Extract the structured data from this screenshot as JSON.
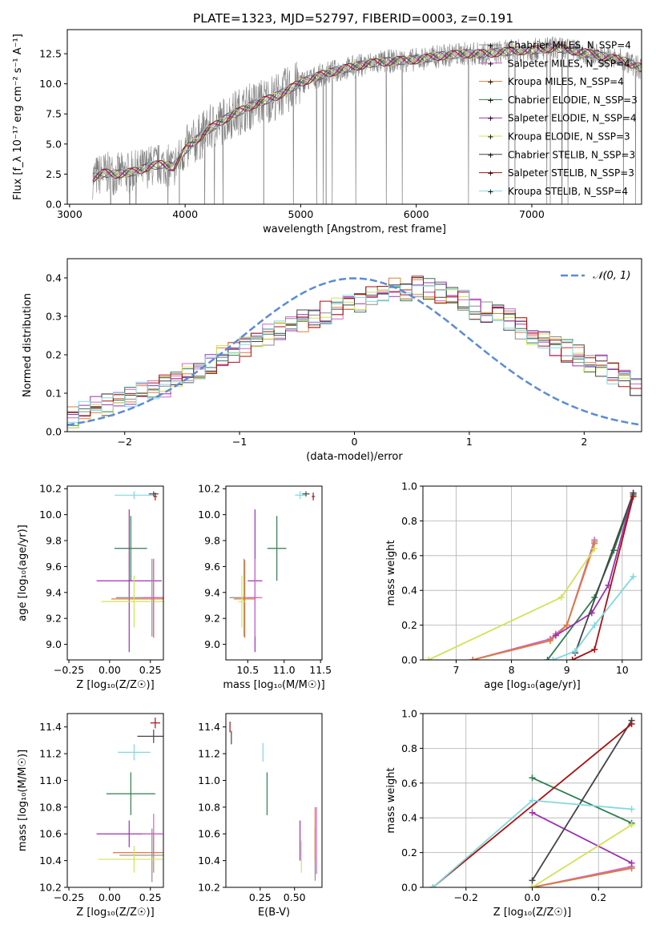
{
  "figure_title": "PLATE=1323, MJD=52797, FIBERID=0003, z=0.191",
  "colors": {
    "Chabrier MILES": "#8c8c8c",
    "Salpeter MILES": "#cc66cc",
    "Kroupa MILES": "#e07b39",
    "Chabrier ELODIE": "#2e7d4f",
    "Salpeter ELODIE": "#9b30b0",
    "Kroupa ELODIE": "#d4e157",
    "Chabrier STELIB": "#444444",
    "Salpeter STELIB": "#aa1111",
    "Kroupa STELIB": "#80d8e0",
    "normal": "#5b8bd6",
    "data": "#808080"
  },
  "chart_data": [
    {
      "id": "spectrum",
      "type": "line",
      "xlabel": "wavelength [Angstrom, rest frame]",
      "ylabel": "Flux [f_λ 10⁻¹⁷ erg cm⁻² s⁻¹ A⁻¹]",
      "xlim": [
        2980,
        7950
      ],
      "ylim": [
        0,
        14.5
      ],
      "xticks": [
        3000,
        4000,
        5000,
        6000,
        7000
      ],
      "yticks": [
        0.0,
        2.5,
        5.0,
        7.5,
        10.0,
        12.5
      ],
      "legend_placement": "top-right",
      "legend": [
        "Chabrier MILES, N_SSP=4",
        "Salpeter MILES, N_SSP=4",
        "Kroupa MILES, N_SSP=4",
        "Chabrier ELODIE, N_SSP=3",
        "Salpeter ELODIE, N_SSP=4",
        "Kroupa ELODIE, N_SSP=3",
        "Chabrier STELIB, N_SSP=3",
        "Salpeter STELIB, N_SSP=3",
        "Kroupa STELIB, N_SSP=4"
      ],
      "model_continuum": {
        "x": [
          3200,
          3300,
          3400,
          3500,
          3600,
          3700,
          3800,
          3900,
          4000,
          4200,
          4400,
          4600,
          4800,
          5000,
          5200,
          5400,
          5600,
          5800,
          6000,
          6200,
          6400,
          6600,
          6800,
          7000,
          7200,
          7400,
          7600,
          7800,
          7950
        ],
        "y": [
          2.2,
          2.6,
          2.5,
          2.6,
          2.8,
          3.2,
          3.3,
          3.1,
          4.5,
          6.2,
          7.4,
          8.3,
          9.0,
          10.1,
          10.8,
          11.3,
          11.7,
          11.9,
          12.0,
          12.3,
          12.5,
          12.5,
          12.7,
          12.8,
          13.0,
          12.7,
          12.3,
          11.9,
          11.3
        ]
      }
    },
    {
      "id": "residuals",
      "type": "histogram",
      "xlabel": "(data-model)/error",
      "ylabel": "Normed distribution",
      "xlim": [
        -2.5,
        2.5
      ],
      "ylim": [
        0,
        0.45
      ],
      "xticks": [
        -2,
        -1,
        0,
        1,
        2
      ],
      "yticks": [
        0.0,
        0.1,
        0.2,
        0.3,
        0.4
      ],
      "grid": true,
      "legend": [
        "𝒩(0, 1)"
      ],
      "legend_placement": "top-right",
      "bin_edges_start": -2.5,
      "bin_width": 0.1,
      "profile": [
        0.04,
        0.055,
        0.07,
        0.07,
        0.075,
        0.09,
        0.1,
        0.11,
        0.12,
        0.135,
        0.15,
        0.16,
        0.18,
        0.2,
        0.21,
        0.22,
        0.23,
        0.25,
        0.26,
        0.28,
        0.29,
        0.3,
        0.31,
        0.32,
        0.33,
        0.34,
        0.36,
        0.36,
        0.37,
        0.37,
        0.38,
        0.37,
        0.36,
        0.35,
        0.34,
        0.32,
        0.31,
        0.3,
        0.29,
        0.27,
        0.25,
        0.24,
        0.22,
        0.21,
        0.2,
        0.18,
        0.17,
        0.15,
        0.13,
        0.12
      ],
      "normal_curve": {
        "mean": 0,
        "sigma": 1
      }
    },
    {
      "id": "age_vs_Z",
      "type": "scatter",
      "xlabel": "Z [log₁₀(Z/Z☉)]",
      "ylabel": "age [log₁₀(age/yr)]",
      "xlim": [
        -0.26,
        0.33
      ],
      "ylim": [
        8.88,
        10.22
      ],
      "xticks": [
        -0.25,
        0.0,
        0.25
      ],
      "yticks": [
        9.0,
        9.2,
        9.4,
        9.6,
        9.8,
        10.0,
        10.2
      ],
      "points": [
        {
          "model": "Kroupa STELIB",
          "x": 0.15,
          "y": 10.15,
          "xerr": 0.12,
          "yerr": 0.03
        },
        {
          "model": "Chabrier STELIB",
          "x": 0.27,
          "y": 10.16,
          "xerr": 0.03,
          "yerr": 0.02
        },
        {
          "model": "Salpeter STELIB",
          "x": 0.28,
          "y": 10.14,
          "xerr": 0.01,
          "yerr": 0.03
        },
        {
          "model": "Chabrier ELODIE",
          "x": 0.13,
          "y": 9.74,
          "xerr": 0.1,
          "yerr": 0.25
        },
        {
          "model": "Salpeter ELODIE",
          "x": 0.12,
          "y": 9.49,
          "xerr": 0.2,
          "yerr": 0.55
        },
        {
          "model": "Chabrier MILES",
          "x": 0.26,
          "y": 9.36,
          "xerr": 0.22,
          "yerr": 0.3
        },
        {
          "model": "Kroupa MILES",
          "x": 0.27,
          "y": 9.35,
          "xerr": 0.26,
          "yerr": 0.3
        },
        {
          "model": "Kroupa ELODIE",
          "x": 0.15,
          "y": 9.33,
          "xerr": 0.2,
          "yerr": 0.2
        },
        {
          "model": "Salpeter MILES",
          "x": 0.27,
          "y": 9.36,
          "xerr": 0.07,
          "yerr": 0.3
        }
      ]
    },
    {
      "id": "age_vs_mass",
      "type": "scatter",
      "xlabel": "mass [log₁₀(M/M☉)]",
      "ylabel": "",
      "xlim": [
        10.2,
        11.52
      ],
      "ylim": [
        8.88,
        10.22
      ],
      "xticks": [
        10.5,
        11.0,
        11.5
      ],
      "yticks": [
        9.0,
        9.2,
        9.4,
        9.6,
        9.8,
        10.0,
        10.2
      ],
      "points": [
        {
          "model": "Kroupa STELIB",
          "x": 11.22,
          "y": 10.15,
          "xerr": 0.07,
          "yerr": 0.03
        },
        {
          "model": "Chabrier STELIB",
          "x": 11.3,
          "y": 10.16,
          "xerr": 0.05,
          "yerr": 0.02
        },
        {
          "model": "Salpeter STELIB",
          "x": 11.4,
          "y": 10.14,
          "xerr": 0.02,
          "yerr": 0.03
        },
        {
          "model": "Chabrier ELODIE",
          "x": 10.9,
          "y": 9.74,
          "xerr": 0.13,
          "yerr": 0.25
        },
        {
          "model": "Salpeter ELODIE",
          "x": 10.6,
          "y": 9.49,
          "xerr": 0.1,
          "yerr": 0.55
        },
        {
          "model": "Chabrier MILES",
          "x": 10.45,
          "y": 9.36,
          "xerr": 0.2,
          "yerr": 0.3
        },
        {
          "model": "Kroupa MILES",
          "x": 10.46,
          "y": 9.35,
          "xerr": 0.15,
          "yerr": 0.3
        },
        {
          "model": "Kroupa ELODIE",
          "x": 10.42,
          "y": 9.33,
          "xerr": 0.05,
          "yerr": 0.2
        },
        {
          "model": "Salpeter MILES",
          "x": 10.6,
          "y": 9.36,
          "xerr": 0.1,
          "yerr": 0.3
        }
      ]
    },
    {
      "id": "mass_weight_vs_age",
      "type": "line",
      "xlabel": "age [log₁₀(age/yr)]",
      "ylabel": "mass weight",
      "xlim": [
        6.4,
        10.35
      ],
      "ylim": [
        0,
        1
      ],
      "xticks": [
        7,
        8,
        9,
        10
      ],
      "yticks": [
        0.0,
        0.2,
        0.4,
        0.6,
        0.8,
        1.0
      ],
      "grid": true,
      "series": [
        {
          "model": "Chabrier MILES",
          "x": [
            7.3,
            8.7,
            9.0,
            9.5
          ],
          "y": [
            0.0,
            0.12,
            0.2,
            0.68
          ]
        },
        {
          "model": "Salpeter MILES",
          "x": [
            7.3,
            8.7,
            8.8,
            9.0,
            9.5
          ],
          "y": [
            0.0,
            0.12,
            0.15,
            0.2,
            0.69
          ]
        },
        {
          "model": "Kroupa MILES",
          "x": [
            7.3,
            8.7,
            9.0,
            9.5
          ],
          "y": [
            0.0,
            0.11,
            0.2,
            0.67
          ]
        },
        {
          "model": "Chabrier ELODIE",
          "x": [
            8.65,
            9.5,
            9.85,
            10.2
          ],
          "y": [
            0.0,
            0.36,
            0.63,
            0.95
          ]
        },
        {
          "model": "Salpeter ELODIE",
          "x": [
            8.8,
            9.45,
            9.75,
            10.2
          ],
          "y": [
            0.14,
            0.27,
            0.43,
            0.96
          ]
        },
        {
          "model": "Kroupa ELODIE",
          "x": [
            6.5,
            8.9,
            9.5
          ],
          "y": [
            0.0,
            0.36,
            0.64
          ]
        },
        {
          "model": "Chabrier STELIB",
          "x": [
            9.15,
            10.2
          ],
          "y": [
            0.04,
            0.96
          ]
        },
        {
          "model": "Salpeter STELIB",
          "x": [
            9.1,
            9.5,
            10.2
          ],
          "y": [
            0.0,
            0.06,
            0.94
          ]
        },
        {
          "model": "Kroupa STELIB",
          "x": [
            8.75,
            9.15,
            9.5,
            10.2
          ],
          "y": [
            0.0,
            0.05,
            0.2,
            0.48
          ]
        }
      ]
    },
    {
      "id": "mass_vs_Z",
      "type": "scatter",
      "xlabel": "Z [log₁₀(Z/Z☉)]",
      "ylabel": "mass [log₁₀(M/M☉)]",
      "xlim": [
        -0.26,
        0.33
      ],
      "ylim": [
        10.2,
        11.5
      ],
      "xticks": [
        -0.25,
        0.0,
        0.25
      ],
      "yticks": [
        10.2,
        10.4,
        10.6,
        10.8,
        11.0,
        11.2,
        11.4
      ],
      "points": [
        {
          "model": "Salpeter STELIB",
          "x": 0.28,
          "y": 11.43,
          "xerr": 0.03,
          "yerr": 0.04
        },
        {
          "model": "Chabrier STELIB",
          "x": 0.27,
          "y": 11.33,
          "xerr": 0.1,
          "yerr": 0.05
        },
        {
          "model": "Kroupa STELIB",
          "x": 0.15,
          "y": 11.21,
          "xerr": 0.1,
          "yerr": 0.06
        },
        {
          "model": "Chabrier ELODIE",
          "x": 0.13,
          "y": 10.9,
          "xerr": 0.15,
          "yerr": 0.16
        },
        {
          "model": "Salpeter ELODIE",
          "x": 0.12,
          "y": 10.6,
          "xerr": 0.2,
          "yerr": 0.1
        },
        {
          "model": "Kroupa MILES",
          "x": 0.27,
          "y": 10.46,
          "xerr": 0.25,
          "yerr": 0.15
        },
        {
          "model": "Chabrier MILES",
          "x": 0.26,
          "y": 10.44,
          "xerr": 0.2,
          "yerr": 0.2
        },
        {
          "model": "Kroupa ELODIE",
          "x": 0.15,
          "y": 10.41,
          "xerr": 0.22,
          "yerr": 0.1
        },
        {
          "model": "Salpeter MILES",
          "x": 0.27,
          "y": 10.6,
          "xerr": 0.07,
          "yerr": 0.15
        }
      ]
    },
    {
      "id": "mass_vs_ebv",
      "type": "scatter",
      "xlabel": "E(B-V)",
      "ylabel": "",
      "xlim": [
        0.0,
        0.7
      ],
      "ylim": [
        10.2,
        11.5
      ],
      "xticks": [
        0.25,
        0.5
      ],
      "yticks": [
        10.2,
        10.4,
        10.6,
        10.8,
        11.0,
        11.2,
        11.4
      ],
      "points": [
        {
          "model": "Salpeter STELIB",
          "x": 0.03,
          "y": 11.4,
          "xerr": 0.0,
          "yerr": 0.04
        },
        {
          "model": "Chabrier STELIB",
          "x": 0.04,
          "y": 11.32,
          "xerr": 0.0,
          "yerr": 0.05
        },
        {
          "model": "Kroupa STELIB",
          "x": 0.27,
          "y": 11.21,
          "xerr": 0.0,
          "yerr": 0.07
        },
        {
          "model": "Chabrier ELODIE",
          "x": 0.3,
          "y": 10.9,
          "xerr": 0.0,
          "yerr": 0.16
        },
        {
          "model": "Salpeter ELODIE",
          "x": 0.54,
          "y": 10.55,
          "xerr": 0.0,
          "yerr": 0.15
        },
        {
          "model": "Kroupa ELODIE",
          "x": 0.55,
          "y": 10.43,
          "xerr": 0.0,
          "yerr": 0.12
        },
        {
          "model": "Chabrier MILES",
          "x": 0.65,
          "y": 10.45,
          "xerr": 0.0,
          "yerr": 0.2
        },
        {
          "model": "Kroupa MILES",
          "x": 0.65,
          "y": 10.6,
          "xerr": 0.0,
          "yerr": 0.2
        },
        {
          "model": "Salpeter MILES",
          "x": 0.66,
          "y": 10.55,
          "xerr": 0.0,
          "yerr": 0.25
        }
      ]
    },
    {
      "id": "mass_weight_vs_Z",
      "type": "line",
      "xlabel": "Z [log₁₀(Z/Z☉)]",
      "ylabel": "mass weight",
      "xlim": [
        -0.33,
        0.33
      ],
      "ylim": [
        0,
        1
      ],
      "xticks": [
        -0.2,
        0.0,
        0.2
      ],
      "yticks": [
        0.0,
        0.2,
        0.4,
        0.6,
        0.8,
        1.0
      ],
      "grid": true,
      "series": [
        {
          "model": "Chabrier MILES",
          "x": [
            0.0,
            0.3
          ],
          "y": [
            0.0,
            0.11
          ]
        },
        {
          "model": "Salpeter MILES",
          "x": [
            0.0,
            0.3
          ],
          "y": [
            0.0,
            0.12
          ]
        },
        {
          "model": "Kroupa MILES",
          "x": [
            0.0,
            0.3
          ],
          "y": [
            0.0,
            0.11
          ]
        },
        {
          "model": "Chabrier ELODIE",
          "x": [
            0.0,
            0.3
          ],
          "y": [
            0.63,
            0.37
          ]
        },
        {
          "model": "Salpeter ELODIE",
          "x": [
            0.0,
            0.3
          ],
          "y": [
            0.43,
            0.14
          ]
        },
        {
          "model": "Kroupa ELODIE",
          "x": [
            0.0,
            0.3
          ],
          "y": [
            0.0,
            0.36
          ]
        },
        {
          "model": "Chabrier STELIB",
          "x": [
            0.0,
            0.3
          ],
          "y": [
            0.04,
            0.96
          ]
        },
        {
          "model": "Salpeter STELIB",
          "x": [
            -0.3,
            0.3
          ],
          "y": [
            0.0,
            0.94
          ]
        },
        {
          "model": "Kroupa STELIB",
          "x": [
            -0.3,
            0.0,
            0.3
          ],
          "y": [
            0.0,
            0.5,
            0.45
          ]
        }
      ]
    }
  ]
}
